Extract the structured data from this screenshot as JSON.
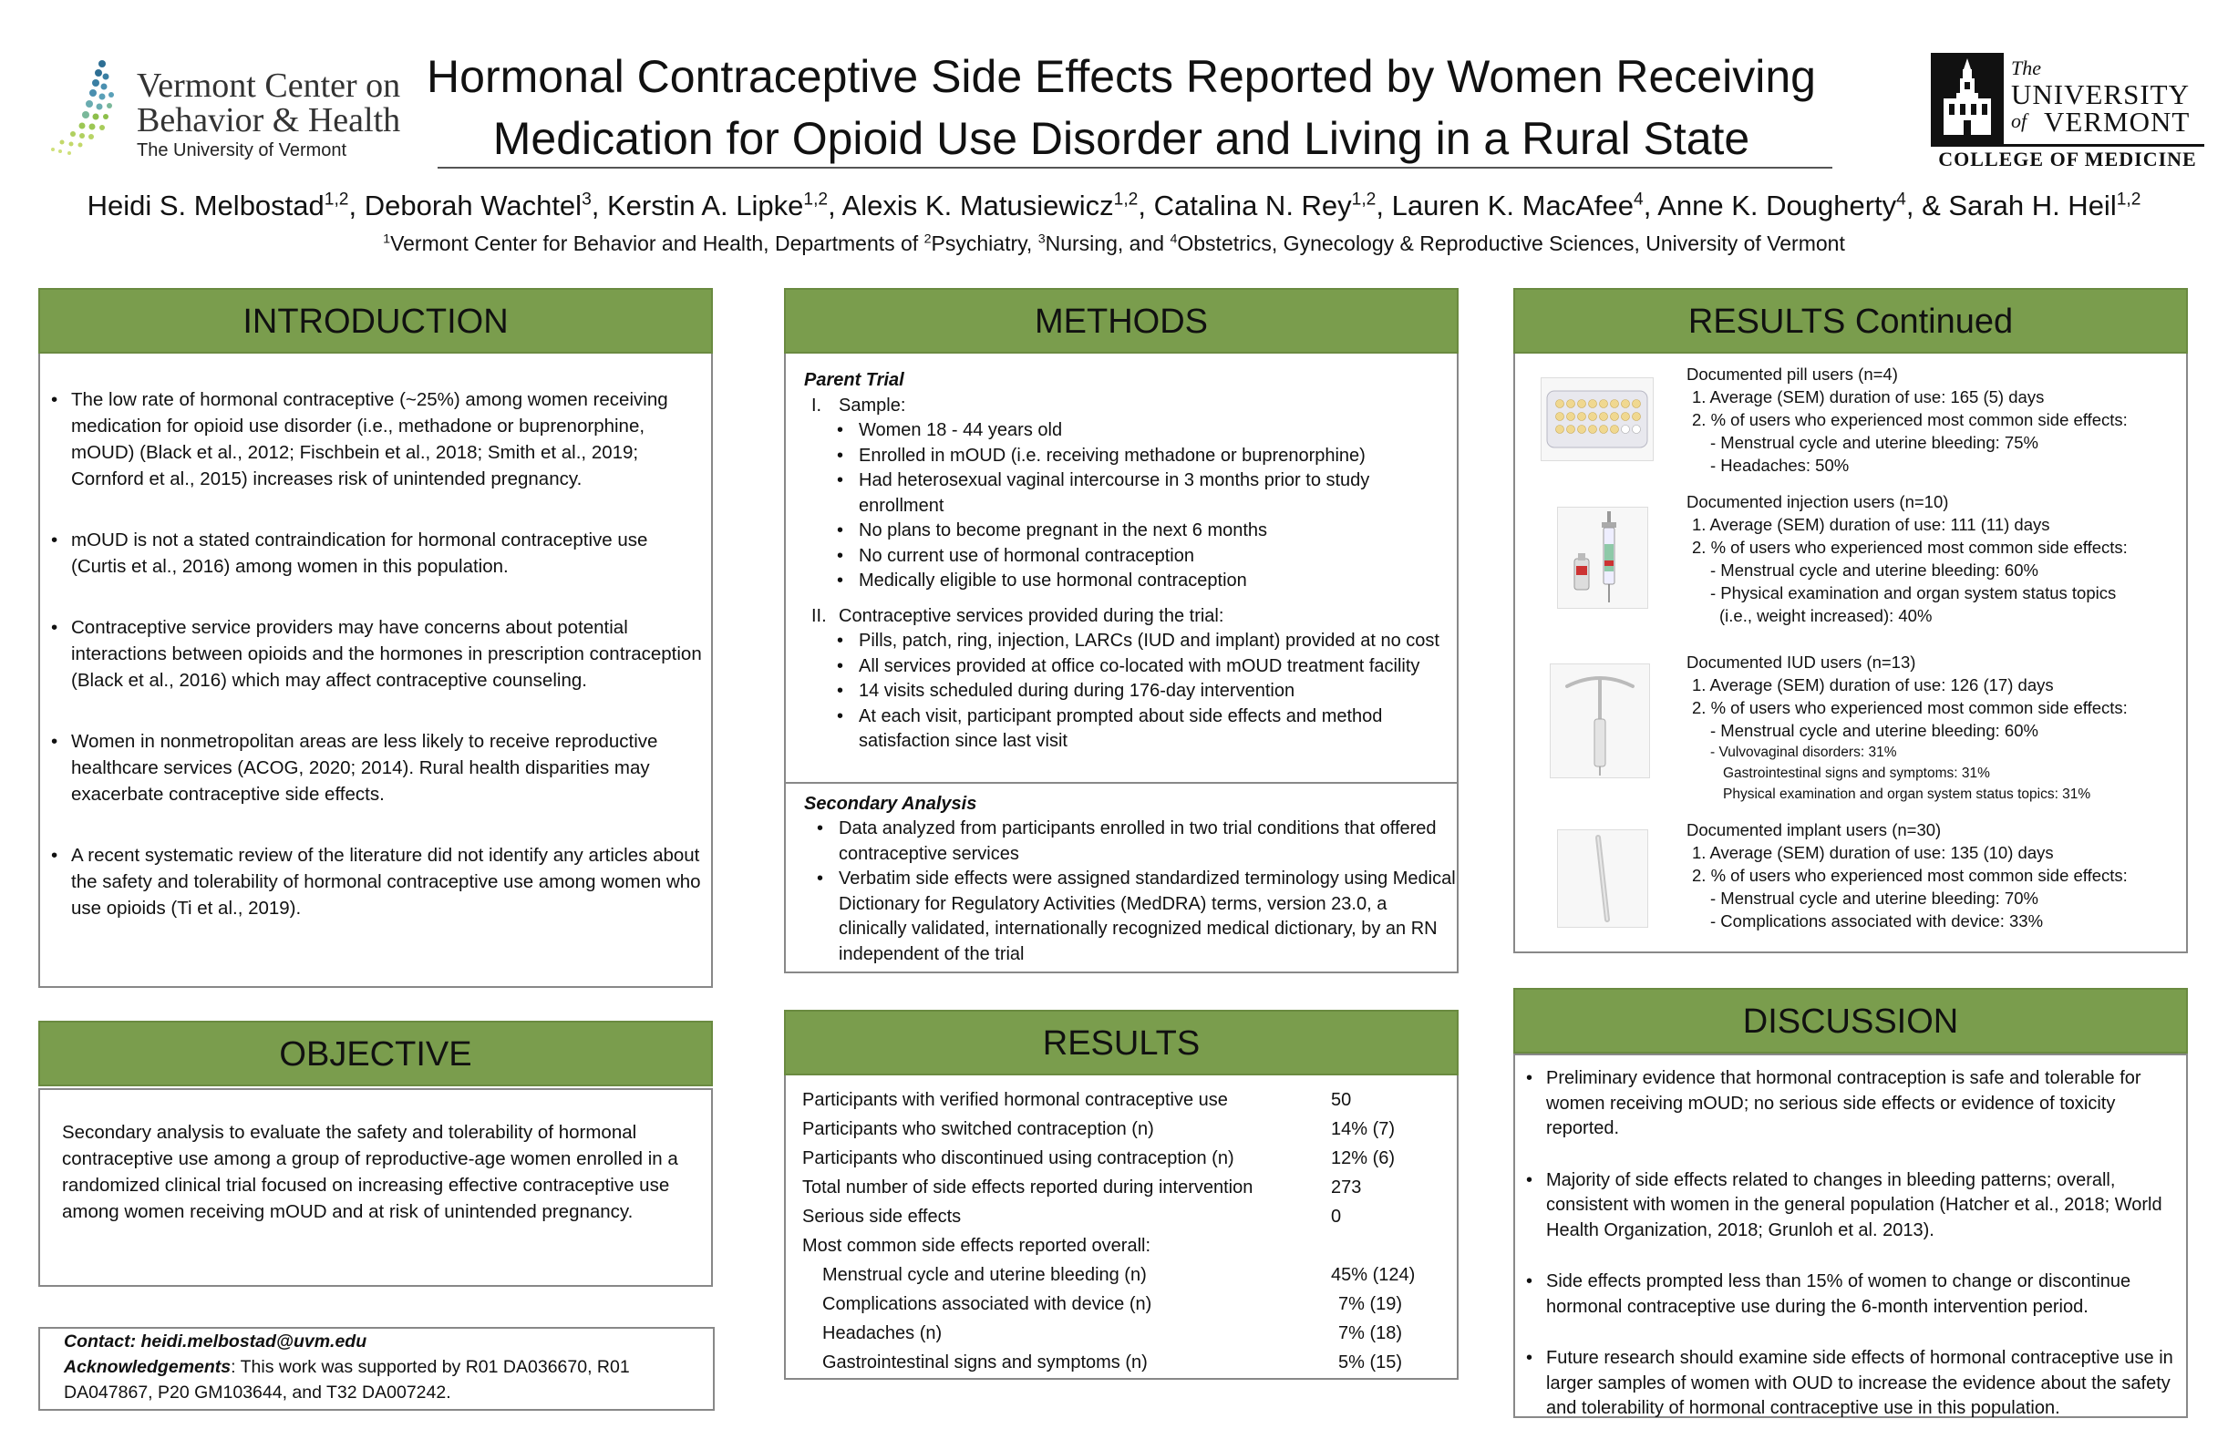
{
  "header": {
    "title_line1": "Hormonal Contraceptive Side Effects Reported by Women Receiving",
    "title_line2": "Medication for Opioid Use Disorder and Living in a Rural State",
    "authors": [
      {
        "name": "Heidi S. Melbostad",
        "sup": "1,2",
        "sep": ", "
      },
      {
        "name": "Deborah Wachtel",
        "sup": "3",
        "sep": ", "
      },
      {
        "name": "Kerstin A. Lipke",
        "sup": "1,2",
        "sep": ", "
      },
      {
        "name": "Alexis K. Matusiewicz",
        "sup": "1,2",
        "sep": ", "
      },
      {
        "name": "Catalina N. Rey",
        "sup": "1,2",
        "sep": ", "
      },
      {
        "name": "Lauren K. MacAfee",
        "sup": "4",
        "sep": ", "
      },
      {
        "name": "Anne K. Dougherty",
        "sup": "4",
        "sep": ", & "
      },
      {
        "name": "Sarah H. Heil",
        "sup": "1,2",
        "sep": ""
      }
    ],
    "affiliation": {
      "s1": "1",
      "t1": "Vermont Center for Behavior and Health, Departments of ",
      "s2": "2",
      "t2": "Psychiatry, ",
      "s3": "3",
      "t3": "Nursing, and ",
      "s4": "4",
      "t4": "Obstetrics, Gynecology & Reproductive Sciences, University of Vermont"
    }
  },
  "logos": {
    "vcbh": {
      "line1": "Vermont Center on",
      "line2": "Behavior & Health",
      "line3": "The University of Vermont",
      "color_dots": [
        "#2e6f94",
        "#5aa0b8",
        "#8dbf4a",
        "#c3d86a"
      ]
    },
    "uvm": {
      "the": "The",
      "university": "UNIVERSITY",
      "of": "of",
      "vermont": "VERMONT",
      "college": "COLLEGE OF MEDICINE"
    }
  },
  "colors": {
    "header_green": "#7a9d4d",
    "border_gray": "#888888"
  },
  "introduction": {
    "heading": "INTRODUCTION",
    "items": [
      "The low rate of hormonal contraceptive (~25%) among women receiving medication for opioid use disorder (i.e., methadone or buprenorphine, mOUD) (Black et al., 2012; Fischbein et al., 2018; Smith et al., 2019; Cornford et al., 2015) increases risk of unintended pregnancy.",
      "mOUD is not a stated contraindication for hormonal contraceptive use (Curtis et al., 2016) among women in this population.",
      "Contraceptive service providers may have concerns about potential interactions between opioids and the hormones in prescription contraception (Black et al., 2016) which may affect contraceptive counseling.",
      "Women in nonmetropolitan areas are less likely to receive reproductive healthcare services (ACOG, 2020; 2014). Rural health disparities may exacerbate contraceptive side effects.",
      "A recent systematic review of the literature did not identify any articles about the safety and tolerability of hormonal contraceptive use among women who use opioids (Ti et al., 2019)."
    ]
  },
  "objective": {
    "heading": "OBJECTIVE",
    "text": "Secondary analysis to evaluate the safety and tolerability of hormonal contraceptive use among a group of reproductive-age women enrolled in a randomized clinical trial focused on increasing effective contraceptive use among women receiving mOUD and at risk of unintended pregnancy."
  },
  "contact": {
    "label": "Contact: heidi.melbostad@uvm.edu",
    "ack_label": "Acknowledgements",
    "ack_text": ": This work was supported by R01 DA036670, R01 DA047867, P20 GM103644, and T32 DA007242."
  },
  "methods": {
    "heading": "METHODS",
    "parent_title": "Parent Trial",
    "sec1_num": "I.",
    "sec1_label": "Sample:",
    "sec1_items": [
      "Women 18 - 44 years old",
      "Enrolled in mOUD (i.e. receiving methadone or buprenorphine)",
      "Had heterosexual vaginal intercourse in 3 months prior to study enrollment",
      "No plans to become pregnant in the next 6 months",
      "No current use of hormonal contraception",
      "Medically eligible to use hormonal contraception"
    ],
    "sec2_num": "II.",
    "sec2_label": "Contraceptive services provided during the trial:",
    "sec2_items": [
      "Pills, patch, ring, injection, LARCs (IUD and implant) provided at no cost",
      "All services provided at office co-located with mOUD treatment facility",
      "14 visits scheduled during during 176-day intervention",
      "At each visit, participant prompted about side effects and method satisfaction since last visit"
    ],
    "secondary_title": "Secondary Analysis",
    "secondary_items": [
      "Data analyzed from participants enrolled in two trial conditions that offered contraceptive services",
      "Verbatim side effects were assigned standardized terminology using Medical Dictionary for Regulatory Activities (MedDRA) terms, version 23.0, a clinically validated, internationally recognized medical dictionary, by an RN independent of the trial"
    ]
  },
  "results": {
    "heading": "RESULTS",
    "rows": [
      {
        "label": "Participants with verified hormonal contraceptive use",
        "value": "50"
      },
      {
        "label": "Participants who switched contraception (n)",
        "value": "14% (7)"
      },
      {
        "label": "Participants who discontinued using contraception (n)",
        "value": "12% (6)"
      },
      {
        "label": "Total number of side effects reported during intervention",
        "value": "273"
      },
      {
        "label": "Serious side effects",
        "value": "0"
      },
      {
        "label": "Most common side effects reported overall:",
        "value": ""
      },
      {
        "label": "Menstrual cycle and uterine bleeding (n)",
        "value": "45% (124)"
      },
      {
        "label": "Complications associated with device (n)",
        "value": "7% (19)"
      },
      {
        "label": "Headaches (n)",
        "value": "7% (18)"
      },
      {
        "label": "Gastrointestinal signs and symptoms (n)",
        "value": "5% (15)"
      }
    ]
  },
  "results_continued": {
    "heading": "RESULTS Continued",
    "pill": {
      "title": "Documented pill users (n=4)",
      "line1": "1.  Average (SEM) duration of use: 165 (5) days",
      "line2": "2.  % of users who experienced most common side effects:",
      "sub": [
        "- Menstrual cycle and uterine bleeding: 75%",
        "- Headaches: 50%"
      ]
    },
    "injection": {
      "title": "Documented injection users (n=10)",
      "line1": "1.  Average (SEM) duration of use: 111 (11) days",
      "line2": "2.  % of users who experienced most common side effects:",
      "sub": [
        "- Menstrual cycle and uterine bleeding: 60%",
        "- Physical examination and organ system status topics",
        "(i.e., weight increased): 40%"
      ]
    },
    "iud": {
      "title": "Documented IUD users (n=13)",
      "line1": "1.  Average (SEM) duration of use: 126 (17) days",
      "line2": "2.  % of users who experienced most common side effects:",
      "sub1": "- Menstrual cycle and uterine bleeding: 60%",
      "small": [
        "- Vulvovaginal disorders: 31%",
        "Gastrointestinal signs and symptoms: 31%",
        "Physical examination and organ system status topics: 31%"
      ]
    },
    "implant": {
      "title": "Documented implant users (n=30)",
      "line1": "1.  Average (SEM) duration of use: 135 (10) days",
      "line2": "2.  % of users who experienced most common side effects:",
      "sub": [
        "- Menstrual cycle and uterine bleeding: 70%",
        "- Complications associated with device: 33%"
      ]
    }
  },
  "discussion": {
    "heading": "DISCUSSION",
    "items": [
      "Preliminary evidence that hormonal contraception is safe and tolerable for women receiving mOUD; no serious side effects or evidence of toxicity reported.",
      "Majority of side effects related to changes in bleeding patterns; overall, consistent with women in the general population (Hatcher et al., 2018; World Health Organization, 2018; Grunloh et al. 2013).",
      "Side effects prompted less than 15% of women to change or discontinue hormonal contraceptive use during the 6-month intervention period.",
      "Future research should examine side effects of hormonal contraceptive use in larger samples of women with OUD to increase the evidence about the safety and tolerability of hormonal contraceptive use in this population."
    ]
  }
}
